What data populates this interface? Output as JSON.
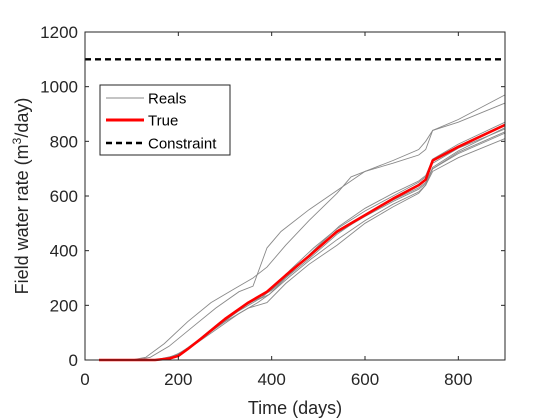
{
  "chart_data": {
    "type": "line",
    "xlabel": "Time (days)",
    "ylabel_main": "Field water rate (m",
    "ylabel_sup": "3",
    "ylabel_end": "/day)",
    "xlim": [
      0,
      900
    ],
    "ylim": [
      0,
      1200
    ],
    "xticks": [
      0,
      200,
      400,
      600,
      800
    ],
    "yticks": [
      0,
      200,
      400,
      600,
      800,
      1000,
      1200
    ],
    "grid": false,
    "legend_position": "upper-left",
    "legend": [
      {
        "label": "Reals",
        "color": "#8a8a8a",
        "style": "solid"
      },
      {
        "label": "True",
        "color": "#ff0000",
        "style": "solid"
      },
      {
        "label": "Constraint",
        "color": "#000000",
        "style": "dashed"
      }
    ],
    "constraint": {
      "name": "Constraint",
      "y": 1100,
      "color": "#000000"
    },
    "true_series": {
      "name": "True",
      "color": "#ff0000",
      "points": [
        [
          30,
          0
        ],
        [
          150,
          0
        ],
        [
          180,
          5
        ],
        [
          200,
          15
        ],
        [
          220,
          40
        ],
        [
          250,
          80
        ],
        [
          300,
          150
        ],
        [
          350,
          210
        ],
        [
          390,
          250
        ],
        [
          430,
          310
        ],
        [
          480,
          380
        ],
        [
          540,
          470
        ],
        [
          600,
          530
        ],
        [
          660,
          590
        ],
        [
          715,
          640
        ],
        [
          730,
          660
        ],
        [
          745,
          730
        ],
        [
          800,
          780
        ],
        [
          900,
          860
        ]
      ]
    },
    "reals": [
      {
        "color": "#8a8a8a",
        "points": [
          [
            30,
            0
          ],
          [
            110,
            0
          ],
          [
            140,
            10
          ],
          [
            180,
            50
          ],
          [
            230,
            120
          ],
          [
            280,
            190
          ],
          [
            330,
            250
          ],
          [
            360,
            270
          ],
          [
            390,
            410
          ],
          [
            420,
            470
          ],
          [
            480,
            550
          ],
          [
            540,
            620
          ],
          [
            600,
            690
          ],
          [
            660,
            730
          ],
          [
            715,
            770
          ],
          [
            730,
            800
          ],
          [
            745,
            840
          ],
          [
            800,
            880
          ],
          [
            900,
            970
          ]
        ]
      },
      {
        "color": "#8a8a8a",
        "points": [
          [
            30,
            0
          ],
          [
            100,
            0
          ],
          [
            130,
            10
          ],
          [
            170,
            60
          ],
          [
            220,
            140
          ],
          [
            270,
            210
          ],
          [
            320,
            260
          ],
          [
            360,
            300
          ],
          [
            390,
            340
          ],
          [
            430,
            420
          ],
          [
            480,
            510
          ],
          [
            540,
            610
          ],
          [
            570,
            670
          ],
          [
            600,
            690
          ],
          [
            660,
            720
          ],
          [
            715,
            750
          ],
          [
            730,
            770
          ],
          [
            745,
            840
          ],
          [
            800,
            870
          ],
          [
            900,
            940
          ]
        ]
      },
      {
        "color": "#8a8a8a",
        "points": [
          [
            30,
            0
          ],
          [
            150,
            0
          ],
          [
            180,
            10
          ],
          [
            210,
            30
          ],
          [
            250,
            80
          ],
          [
            300,
            140
          ],
          [
            350,
            190
          ],
          [
            390,
            210
          ],
          [
            430,
            280
          ],
          [
            480,
            350
          ],
          [
            540,
            420
          ],
          [
            600,
            500
          ],
          [
            660,
            560
          ],
          [
            715,
            610
          ],
          [
            730,
            640
          ],
          [
            745,
            690
          ],
          [
            800,
            740
          ],
          [
            900,
            810
          ]
        ]
      },
      {
        "color": "#8a8a8a",
        "points": [
          [
            30,
            0
          ],
          [
            150,
            0
          ],
          [
            190,
            15
          ],
          [
            230,
            50
          ],
          [
            280,
            110
          ],
          [
            330,
            170
          ],
          [
            370,
            210
          ],
          [
            395,
            240
          ],
          [
            430,
            300
          ],
          [
            480,
            370
          ],
          [
            540,
            460
          ],
          [
            600,
            530
          ],
          [
            660,
            585
          ],
          [
            715,
            630
          ],
          [
            730,
            650
          ],
          [
            745,
            700
          ],
          [
            800,
            755
          ],
          [
            900,
            830
          ]
        ]
      },
      {
        "color": "#8a8a8a",
        "points": [
          [
            30,
            0
          ],
          [
            160,
            0
          ],
          [
            200,
            20
          ],
          [
            240,
            70
          ],
          [
            290,
            140
          ],
          [
            340,
            200
          ],
          [
            380,
            230
          ],
          [
            400,
            260
          ],
          [
            440,
            330
          ],
          [
            490,
            410
          ],
          [
            540,
            480
          ],
          [
            600,
            545
          ],
          [
            660,
            600
          ],
          [
            715,
            650
          ],
          [
            730,
            670
          ],
          [
            745,
            720
          ],
          [
            800,
            775
          ],
          [
            900,
            845
          ]
        ]
      },
      {
        "color": "#8a8a8a",
        "points": [
          [
            30,
            0
          ],
          [
            150,
            0
          ],
          [
            185,
            10
          ],
          [
            225,
            45
          ],
          [
            275,
            110
          ],
          [
            325,
            175
          ],
          [
            365,
            225
          ],
          [
            395,
            250
          ],
          [
            440,
            320
          ],
          [
            490,
            400
          ],
          [
            540,
            465
          ],
          [
            600,
            525
          ],
          [
            660,
            580
          ],
          [
            715,
            625
          ],
          [
            730,
            645
          ],
          [
            745,
            705
          ],
          [
            800,
            765
          ],
          [
            900,
            850
          ]
        ]
      },
      {
        "color": "#8a8a8a",
        "points": [
          [
            30,
            0
          ],
          [
            150,
            0
          ],
          [
            190,
            12
          ],
          [
            230,
            55
          ],
          [
            280,
            120
          ],
          [
            330,
            180
          ],
          [
            370,
            220
          ],
          [
            395,
            240
          ],
          [
            435,
            300
          ],
          [
            485,
            370
          ],
          [
            540,
            440
          ],
          [
            600,
            510
          ],
          [
            660,
            570
          ],
          [
            715,
            615
          ],
          [
            730,
            640
          ],
          [
            745,
            700
          ],
          [
            800,
            760
          ],
          [
            900,
            835
          ]
        ]
      },
      {
        "color": "#8a8a8a",
        "points": [
          [
            30,
            0
          ],
          [
            160,
            0
          ],
          [
            195,
            18
          ],
          [
            235,
            60
          ],
          [
            285,
            125
          ],
          [
            335,
            190
          ],
          [
            375,
            230
          ],
          [
            400,
            255
          ],
          [
            445,
            325
          ],
          [
            495,
            410
          ],
          [
            545,
            490
          ],
          [
            600,
            555
          ],
          [
            660,
            610
          ],
          [
            715,
            655
          ],
          [
            730,
            675
          ],
          [
            745,
            735
          ],
          [
            800,
            790
          ],
          [
            900,
            870
          ]
        ]
      }
    ]
  }
}
